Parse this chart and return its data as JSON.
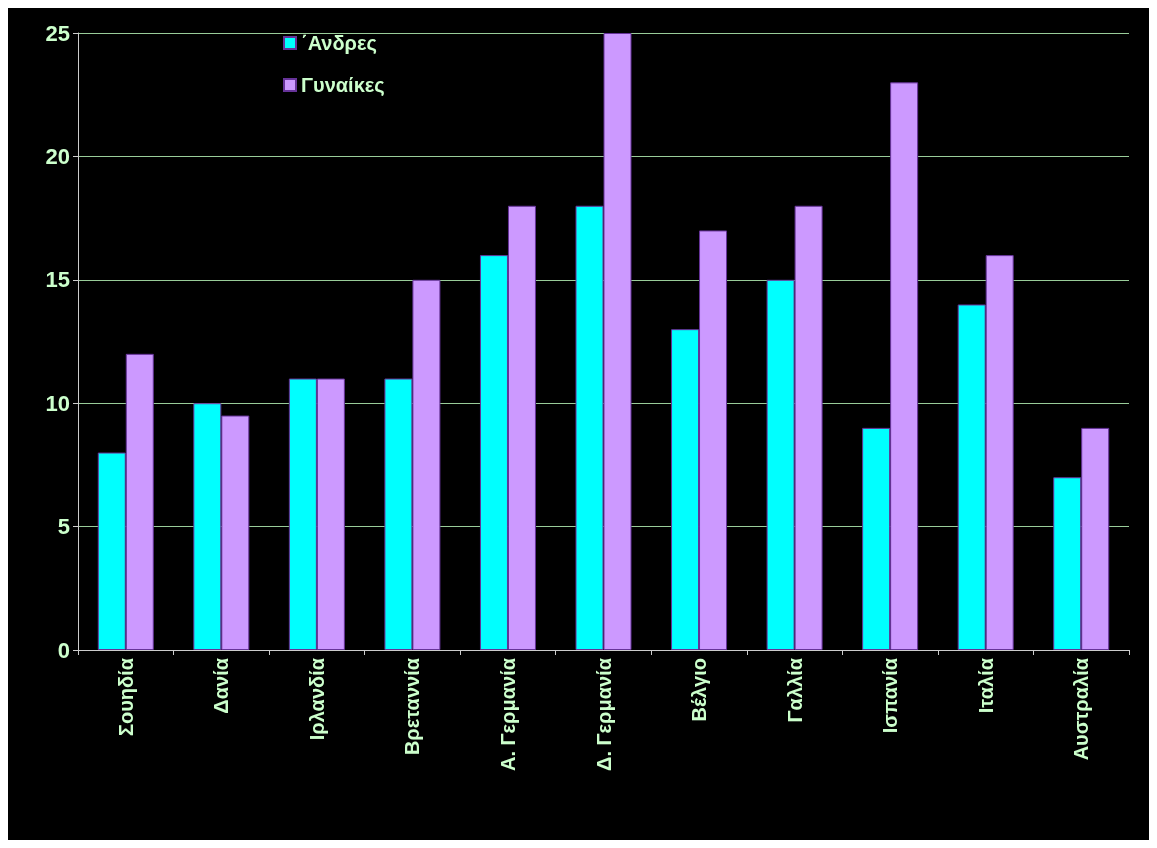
{
  "chart_data": {
    "type": "bar",
    "categories": [
      "Σουηδία",
      "Δανία",
      "Ιρλανδία",
      "Βρεταννία",
      "Α. Γερμανία",
      "Δ. Γερμανία",
      "Βέλγιο",
      "Γαλλία",
      "Ισπανία",
      "Ιταλία",
      "Αυστραλία"
    ],
    "series": [
      {
        "name": "΄Ανδρες",
        "color": "#00ffff",
        "values": [
          8,
          10,
          11,
          11,
          16,
          18,
          13,
          15,
          9,
          14,
          7
        ]
      },
      {
        "name": "Γυναίκες",
        "color": "#cc99ff",
        "values": [
          12,
          9.5,
          11,
          15,
          18,
          25,
          17,
          18,
          23,
          16,
          9
        ]
      }
    ],
    "ylim": [
      0,
      25
    ],
    "yticks": [
      0,
      5,
      10,
      15,
      20,
      25
    ],
    "grid": "y",
    "legend": "top left"
  }
}
